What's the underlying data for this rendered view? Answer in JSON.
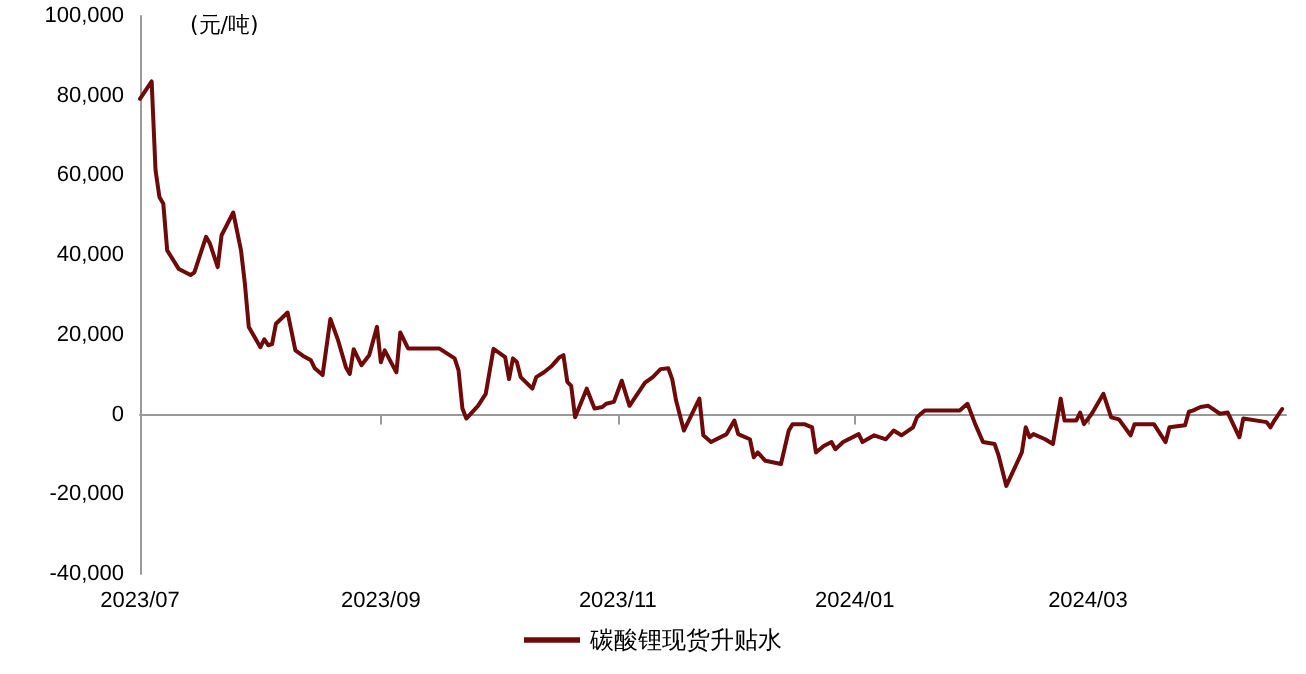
{
  "chart_data": {
    "type": "line",
    "ylabel": "(元/吨)",
    "x": [
      "2023-07-01",
      "2023-07-04",
      "2023-07-05",
      "2023-07-06",
      "2023-07-07",
      "2023-07-08",
      "2023-07-11",
      "2023-07-14",
      "2023-07-15",
      "2023-07-18",
      "2023-07-19",
      "2023-07-21",
      "2023-07-22",
      "2023-07-25",
      "2023-07-27",
      "2023-07-28",
      "2023-07-29",
      "2023-08-01",
      "2023-08-02",
      "2023-08-03",
      "2023-08-04",
      "2023-08-05",
      "2023-08-08",
      "2023-08-10",
      "2023-08-12",
      "2023-08-14",
      "2023-08-15",
      "2023-08-17",
      "2023-08-19",
      "2023-08-21",
      "2023-08-23",
      "2023-08-24",
      "2023-08-25",
      "2023-08-27",
      "2023-08-29",
      "2023-08-31",
      "2023-09-01",
      "2023-09-02",
      "2023-09-05",
      "2023-09-06",
      "2023-09-08",
      "2023-09-16",
      "2023-09-20",
      "2023-09-21",
      "2023-09-22",
      "2023-09-23",
      "2023-09-26",
      "2023-09-28",
      "2023-09-30",
      "2023-10-03",
      "2023-10-04",
      "2023-10-05",
      "2023-10-06",
      "2023-10-07",
      "2023-10-10",
      "2023-10-11",
      "2023-10-13",
      "2023-10-15",
      "2023-10-17",
      "2023-10-18",
      "2023-10-19",
      "2023-10-20",
      "2023-10-21",
      "2023-10-24",
      "2023-10-26",
      "2023-10-28",
      "2023-10-29",
      "2023-10-31",
      "2023-11-02",
      "2023-11-04",
      "2023-11-08",
      "2023-11-10",
      "2023-11-12",
      "2023-11-14",
      "2023-11-15",
      "2023-11-16",
      "2023-11-18",
      "2023-11-22",
      "2023-11-23",
      "2023-11-25",
      "2023-11-29",
      "2023-12-01",
      "2023-12-02",
      "2023-12-05",
      "2023-12-06",
      "2023-12-07",
      "2023-12-09",
      "2023-12-13",
      "2023-12-15",
      "2023-12-16",
      "2023-12-19",
      "2023-12-21",
      "2023-12-22",
      "2023-12-24",
      "2023-12-26",
      "2023-12-27",
      "2023-12-29",
      "2024-01-02",
      "2024-01-03",
      "2024-01-06",
      "2024-01-09",
      "2024-01-11",
      "2024-01-13",
      "2024-01-16",
      "2024-01-17",
      "2024-01-18",
      "2024-01-19",
      "2024-01-28",
      "2024-01-30",
      "2024-02-01",
      "2024-02-03",
      "2024-02-06",
      "2024-02-07",
      "2024-02-09",
      "2024-02-13",
      "2024-02-14",
      "2024-02-15",
      "2024-02-16",
      "2024-02-19",
      "2024-02-21",
      "2024-02-23",
      "2024-02-24",
      "2024-02-27",
      "2024-02-28",
      "2024-02-29",
      "2024-03-02",
      "2024-03-05",
      "2024-03-07",
      "2024-03-09",
      "2024-03-12",
      "2024-03-13",
      "2024-03-18",
      "2024-03-21",
      "2024-03-22",
      "2024-03-26",
      "2024-03-27",
      "2024-03-28",
      "2024-03-30",
      "2024-04-01",
      "2024-04-04",
      "2024-04-06",
      "2024-04-09",
      "2024-04-10",
      "2024-04-16",
      "2024-04-17",
      "2024-04-18",
      "2024-04-20"
    ],
    "series": [
      {
        "name": "碳酸锂现货升贴水",
        "color": "#6e0a0a",
        "values": [
          79200,
          83600,
          61300,
          54600,
          52900,
          41200,
          36500,
          35000,
          35700,
          44600,
          42900,
          37000,
          45000,
          50700,
          41200,
          32800,
          22000,
          16900,
          18900,
          17400,
          17700,
          22800,
          25600,
          16100,
          14700,
          13600,
          11600,
          9900,
          24000,
          18600,
          11900,
          10200,
          16400,
          12400,
          14900,
          22000,
          13100,
          16100,
          10600,
          20600,
          16600,
          16600,
          14100,
          11100,
          1500,
          -1000,
          2200,
          5200,
          16500,
          14400,
          8900,
          14100,
          13200,
          9400,
          6500,
          9400,
          10600,
          12200,
          14400,
          14900,
          8200,
          7200,
          -700,
          6500,
          1500,
          1900,
          2700,
          3200,
          8500,
          2200,
          8000,
          9400,
          11400,
          11600,
          8900,
          3500,
          -4000,
          4000,
          -5200,
          -6900,
          -4900,
          -1500,
          -4900,
          -6200,
          -10700,
          -9500,
          -11600,
          -12400,
          -4000,
          -2400,
          -2400,
          -3200,
          -9500,
          -7900,
          -6900,
          -8700,
          -6900,
          -4900,
          -6900,
          -5200,
          -6200,
          -4000,
          -5200,
          -3200,
          -700,
          200,
          1000,
          1000,
          2700,
          -2400,
          -6900,
          -7400,
          -10200,
          -17900,
          -9500,
          -3200,
          -5700,
          -4900,
          -6200,
          -7400,
          4000,
          -1500,
          -1500,
          500,
          -2400,
          200,
          5200,
          -700,
          -1200,
          -5200,
          -2400,
          -2400,
          -6900,
          -3200,
          -2700,
          700,
          1000,
          1900,
          2200,
          200,
          500,
          -5700,
          -1000,
          -1900,
          -3200,
          -1500,
          1400
        ]
      }
    ],
    "xlim": [
      "2023-07-01",
      "2024-04-21"
    ],
    "xticks": [
      {
        "value": "2023-07-01",
        "label": "2023/07"
      },
      {
        "value": "2023-09-01",
        "label": "2023/09"
      },
      {
        "value": "2023-11-01",
        "label": "2023/11"
      },
      {
        "value": "2024-01-01",
        "label": "2024/01"
      },
      {
        "value": "2024-03-01",
        "label": "2024/03"
      }
    ],
    "ylim": [
      -40000,
      100000
    ],
    "yticks": [
      {
        "value": -40000,
        "label": "-40,000"
      },
      {
        "value": -20000,
        "label": "-20,000"
      },
      0,
      {
        "value": 20000,
        "label": "20,000"
      },
      {
        "value": 40000,
        "label": "40,000"
      },
      {
        "value": 60000,
        "label": "60,000"
      },
      {
        "value": 80000,
        "label": "80,000"
      },
      {
        "value": 100000,
        "label": "100,000"
      }
    ],
    "legend": "bottom",
    "marker": "none",
    "line_style": "solid"
  }
}
